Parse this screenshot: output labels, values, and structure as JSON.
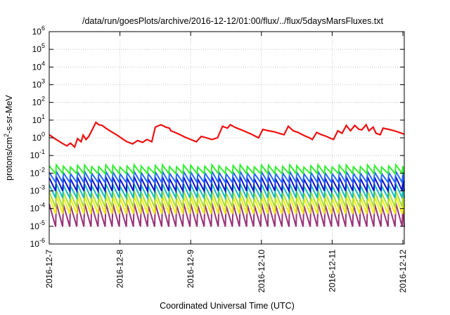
{
  "chart_data": {
    "type": "line",
    "title": "/data/run/goesPlots/archive/2016-12-12/01:00/flux/../flux/5daysMarsFluxes.txt",
    "xlabel": "Coordinated Universal Time (UTC)",
    "ylabel": {
      "main": "protons/cm",
      "sup": "2",
      "rest": "-s-sr-MeV"
    },
    "yscale": "log",
    "ylim": [
      1e-06,
      1000000.0
    ],
    "xlim": [
      0,
      5.02
    ],
    "grid": true,
    "x_ticks": [
      {
        "x": 0,
        "label": "2016-12-7"
      },
      {
        "x": 1,
        "label": "2016-12-8"
      },
      {
        "x": 2,
        "label": "2016-12-9"
      },
      {
        "x": 3,
        "label": "2016-12-10"
      },
      {
        "x": 4,
        "label": "2016-12-11"
      },
      {
        "x": 5,
        "label": "2016-12-12"
      }
    ],
    "y_ticks": [
      {
        "exp": -6,
        "label": "10",
        "sup": "-6"
      },
      {
        "exp": -5,
        "label": "10",
        "sup": "-5"
      },
      {
        "exp": -4,
        "label": "10",
        "sup": "-4"
      },
      {
        "exp": -3,
        "label": "10",
        "sup": "-3"
      },
      {
        "exp": -2,
        "label": "10",
        "sup": "-2"
      },
      {
        "exp": -1,
        "label": "10",
        "sup": "-1"
      },
      {
        "exp": 0,
        "label": "10",
        "sup": "0"
      },
      {
        "exp": 1,
        "label": "10",
        "sup": "1"
      },
      {
        "exp": 2,
        "label": "10",
        "sup": "2"
      },
      {
        "exp": 3,
        "label": "10",
        "sup": "3"
      },
      {
        "exp": 4,
        "label": "10",
        "sup": "4"
      },
      {
        "exp": 5,
        "label": "10",
        "sup": "5"
      },
      {
        "exp": 6,
        "label": "10",
        "sup": "6"
      }
    ],
    "top_series": {
      "color": "#ee1111",
      "x": [
        0.0,
        0.08,
        0.18,
        0.25,
        0.3,
        0.36,
        0.4,
        0.45,
        0.48,
        0.52,
        0.56,
        0.6,
        0.66,
        0.7,
        0.75,
        0.8,
        0.88,
        0.95,
        1.05,
        1.1,
        1.18,
        1.25,
        1.32,
        1.38,
        1.45,
        1.5,
        1.58,
        1.65,
        1.7,
        1.72,
        1.78,
        1.85,
        1.92,
        2.0,
        2.08,
        2.15,
        2.22,
        2.3,
        2.38,
        2.45,
        2.52,
        2.56,
        2.62,
        2.68,
        2.75,
        2.8,
        2.86,
        2.92,
        2.96,
        3.02,
        3.1,
        3.18,
        3.25,
        3.32,
        3.38,
        3.45,
        3.52,
        3.58,
        3.63,
        3.68,
        3.72,
        3.78,
        3.85,
        3.92,
        3.96,
        4.02,
        4.08,
        4.14,
        4.2,
        4.26,
        4.32,
        4.38,
        4.42,
        4.48,
        4.52,
        4.58,
        4.62,
        4.68,
        4.72,
        4.8,
        4.88,
        4.95,
        5.02
      ],
      "y": [
        1.5,
        0.9,
        0.5,
        0.35,
        0.5,
        0.3,
        0.9,
        0.6,
        1.4,
        0.8,
        1.2,
        2.5,
        7.5,
        5.5,
        5.0,
        3.5,
        2.2,
        1.5,
        0.8,
        0.6,
        0.45,
        0.7,
        0.55,
        0.8,
        0.6,
        4.0,
        5.5,
        4.0,
        3.5,
        2.5,
        2.0,
        1.5,
        1.1,
        0.8,
        0.6,
        1.2,
        1.0,
        0.8,
        1.0,
        4.5,
        3.5,
        5.5,
        4.0,
        3.2,
        2.5,
        2.0,
        1.6,
        1.2,
        1.0,
        3.0,
        2.5,
        2.2,
        1.8,
        1.5,
        4.5,
        2.5,
        2.0,
        1.5,
        1.2,
        1.0,
        0.8,
        2.0,
        1.5,
        1.2,
        1.0,
        0.8,
        2.5,
        1.8,
        5.0,
        2.5,
        5.0,
        3.0,
        2.8,
        5.5,
        2.5,
        4.0,
        1.8,
        1.5,
        3.5,
        3.0,
        2.5,
        2.0,
        1.6
      ]
    },
    "sawtooth_series": [
      {
        "color": "#33ee33",
        "peak": 0.026,
        "trough": 0.0095
      },
      {
        "color": "#2266ff",
        "peak": 0.011,
        "trough": 0.003
      },
      {
        "color": "#1111cc",
        "peak": 0.0055,
        "trough": 0.001
      },
      {
        "color": "#11bbbb",
        "peak": 0.0022,
        "trough": 0.0004
      },
      {
        "color": "#aadd33",
        "peak": 0.0009,
        "trough": 0.00012
      },
      {
        "color": "#eeee11",
        "peak": 0.00045,
        "trough": 5e-05
      },
      {
        "color": "#993377",
        "peak": 0.00018,
        "trough": 9.5e-06
      }
    ],
    "sawtooth_period": 0.1
  }
}
